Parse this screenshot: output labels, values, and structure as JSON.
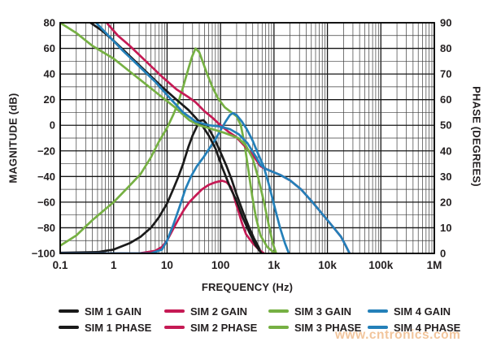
{
  "watermark": "www.cntronics.com",
  "chart_data": {
    "type": "line",
    "title": "",
    "xlabel": "FREQUENCY (Hz)",
    "ylabel_left": "MAGNITUDE (dB)",
    "ylabel_right": "PHASE (DEGREES)",
    "x_scale": "log",
    "x_range_hz": [
      0.1,
      1000000
    ],
    "x_tick_labels": [
      "0.1",
      "1",
      "10",
      "100",
      "1k",
      "10k",
      "100k",
      "1M"
    ],
    "y_left_range_db": [
      -100,
      80
    ],
    "y_left_tick_labels": [
      "80",
      "60",
      "40",
      "20",
      "0",
      "−20",
      "−40",
      "−60",
      "−80",
      "−100"
    ],
    "y_left_tick_values": [
      80,
      60,
      40,
      20,
      0,
      -20,
      -40,
      -60,
      -80,
      -100
    ],
    "y_right_range_deg": [
      0,
      90
    ],
    "y_right_tick_labels": [
      "90",
      "80",
      "70",
      "60",
      "50",
      "40",
      "30",
      "20",
      "10",
      "0"
    ],
    "y_right_tick_values": [
      90,
      80,
      70,
      60,
      50,
      40,
      30,
      20,
      10,
      0
    ],
    "grid": "full log minor verticals; horizontal line every 10 dB (5 deg), major every 20 dB",
    "legend_position": "below",
    "colors": {
      "sim1": "#1a1a1a",
      "sim2": "#c51a54",
      "sim3": "#76b043",
      "sim4": "#2480b9"
    },
    "series": [
      {
        "name": "SIM 1 GAIN",
        "color": "sim1",
        "axis": "left",
        "unit": "dB",
        "points": [
          [
            0.1,
            -99.5
          ],
          [
            0.5,
            -99
          ],
          [
            1,
            -97
          ],
          [
            2,
            -92
          ],
          [
            3.2,
            -87
          ],
          [
            5,
            -80
          ],
          [
            7,
            -72
          ],
          [
            10,
            -61
          ],
          [
            13,
            -50
          ],
          [
            16,
            -41
          ],
          [
            20,
            -30
          ],
          [
            25,
            -17
          ],
          [
            30,
            -8
          ],
          [
            36,
            -1
          ],
          [
            42,
            3.5
          ],
          [
            48,
            4
          ],
          [
            55,
            1
          ],
          [
            65,
            -5
          ],
          [
            80,
            -12
          ],
          [
            100,
            -21
          ],
          [
            130,
            -32
          ],
          [
            160,
            -42
          ],
          [
            200,
            -54
          ],
          [
            260,
            -67
          ],
          [
            330,
            -78
          ],
          [
            420,
            -88
          ],
          [
            500,
            -94
          ],
          [
            585,
            -100
          ]
        ]
      },
      {
        "name": "SIM 2 GAIN",
        "color": "sim2",
        "axis": "left",
        "unit": "dB",
        "points": [
          [
            0.1,
            -100
          ],
          [
            3,
            -100
          ],
          [
            6,
            -98
          ],
          [
            8,
            -95
          ],
          [
            10,
            -90
          ],
          [
            13,
            -81
          ],
          [
            16,
            -74
          ],
          [
            20,
            -67
          ],
          [
            26,
            -60
          ],
          [
            34,
            -55
          ],
          [
            45,
            -50
          ],
          [
            60,
            -46.5
          ],
          [
            80,
            -44.5
          ],
          [
            107,
            -43.3
          ],
          [
            130,
            -44.5
          ],
          [
            155,
            -48
          ],
          [
            175,
            -54
          ],
          [
            194,
            -61
          ],
          [
            220,
            -68
          ],
          [
            250,
            -76
          ],
          [
            300,
            -85
          ],
          [
            400,
            -92
          ],
          [
            520,
            -97
          ],
          [
            650,
            -100
          ]
        ]
      },
      {
        "name": "SIM 3 GAIN",
        "color": "sim3",
        "axis": "left",
        "unit": "dB",
        "points": [
          [
            0.1,
            -94
          ],
          [
            0.2,
            -86
          ],
          [
            0.4,
            -74
          ],
          [
            1,
            -60
          ],
          [
            2,
            -47
          ],
          [
            3.2,
            -38
          ],
          [
            5,
            -25
          ],
          [
            7,
            -13
          ],
          [
            10,
            -2
          ],
          [
            13,
            8
          ],
          [
            16,
            17
          ],
          [
            20,
            30
          ],
          [
            25,
            44
          ],
          [
            29,
            53
          ],
          [
            34,
            60
          ],
          [
            40,
            57
          ],
          [
            46,
            50
          ],
          [
            55,
            41
          ],
          [
            70,
            30
          ],
          [
            90,
            21
          ],
          [
            120,
            14
          ],
          [
            160,
            10
          ],
          [
            200,
            7
          ],
          [
            240,
            0
          ],
          [
            280,
            -14
          ],
          [
            330,
            -34
          ],
          [
            390,
            -55
          ],
          [
            460,
            -72
          ],
          [
            560,
            -86
          ],
          [
            750,
            -95
          ],
          [
            1050,
            -100
          ]
        ]
      },
      {
        "name": "SIM 4 GAIN",
        "color": "sim4",
        "axis": "left",
        "unit": "dB",
        "points": [
          [
            0.1,
            -100
          ],
          [
            5,
            -100
          ],
          [
            8,
            -97
          ],
          [
            10,
            -90
          ],
          [
            13,
            -78
          ],
          [
            17,
            -64
          ],
          [
            22,
            -50
          ],
          [
            28,
            -40
          ],
          [
            36,
            -32
          ],
          [
            48,
            -25
          ],
          [
            62,
            -18
          ],
          [
            80,
            -11
          ],
          [
            100,
            -4
          ],
          [
            125,
            3
          ],
          [
            150,
            8
          ],
          [
            170,
            9.5
          ],
          [
            200,
            8
          ],
          [
            250,
            3
          ],
          [
            310,
            -3
          ],
          [
            400,
            -12
          ],
          [
            500,
            -22
          ],
          [
            640,
            -32
          ],
          [
            800,
            -46
          ],
          [
            1000,
            -62
          ],
          [
            1300,
            -80
          ],
          [
            1600,
            -92
          ],
          [
            1900,
            -100
          ]
        ]
      },
      {
        "name": "SIM 1 PHASE",
        "color": "sim1",
        "axis": "right",
        "unit": "deg",
        "points": [
          [
            0.25,
            95
          ],
          [
            0.37,
            90
          ],
          [
            0.6,
            87
          ],
          [
            1,
            83
          ],
          [
            2,
            77
          ],
          [
            4,
            71
          ],
          [
            8,
            65
          ],
          [
            15,
            60
          ],
          [
            25,
            56
          ],
          [
            34,
            53
          ],
          [
            45,
            50
          ],
          [
            60,
            46
          ],
          [
            80,
            41
          ],
          [
            110,
            33
          ],
          [
            150,
            26
          ],
          [
            194,
            21
          ],
          [
            260,
            14
          ],
          [
            350,
            8
          ],
          [
            460,
            3
          ],
          [
            585,
            0
          ]
        ]
      },
      {
        "name": "SIM 2 PHASE",
        "color": "sim2",
        "axis": "right",
        "unit": "deg",
        "points": [
          [
            0.5,
            95
          ],
          [
            0.74,
            90
          ],
          [
            1.2,
            85
          ],
          [
            2,
            81
          ],
          [
            4,
            75
          ],
          [
            8,
            69
          ],
          [
            15,
            64
          ],
          [
            25,
            61
          ],
          [
            34,
            59
          ],
          [
            50,
            55.5
          ],
          [
            70,
            53
          ],
          [
            100,
            50
          ],
          [
            140,
            47.5
          ],
          [
            194,
            45.5
          ],
          [
            280,
            42
          ],
          [
            400,
            38.5
          ],
          [
            560,
            34
          ],
          [
            700,
            33
          ],
          [
            900,
            32
          ],
          [
            1350,
            30.5
          ],
          [
            2000,
            28.5
          ],
          [
            3200,
            25
          ],
          [
            5000,
            20.5
          ],
          [
            7600,
            16
          ],
          [
            12000,
            11
          ],
          [
            18000,
            6.5
          ],
          [
            22000,
            3
          ],
          [
            26000,
            0
          ]
        ]
      },
      {
        "name": "SIM 3 PHASE",
        "color": "sim3",
        "axis": "right",
        "unit": "deg",
        "points": [
          [
            0.1,
            90
          ],
          [
            0.2,
            86
          ],
          [
            0.4,
            81
          ],
          [
            1,
            76
          ],
          [
            2,
            71
          ],
          [
            4,
            66
          ],
          [
            8,
            61
          ],
          [
            14,
            57
          ],
          [
            26,
            52
          ],
          [
            40,
            50
          ],
          [
            70,
            48.5
          ],
          [
            120,
            47
          ],
          [
            215,
            45
          ],
          [
            300,
            42
          ],
          [
            400,
            37
          ],
          [
            500,
            30
          ],
          [
            650,
            20
          ],
          [
            800,
            11
          ],
          [
            950,
            4
          ],
          [
            1100,
            0
          ]
        ]
      },
      {
        "name": "SIM 4 PHASE",
        "color": "sim4",
        "axis": "right",
        "unit": "deg",
        "points": [
          [
            0.3,
            95
          ],
          [
            0.47,
            90
          ],
          [
            0.8,
            85
          ],
          [
            1.5,
            79
          ],
          [
            3,
            73
          ],
          [
            6,
            67
          ],
          [
            12,
            60
          ],
          [
            20,
            55
          ],
          [
            34,
            51.5
          ],
          [
            60,
            50
          ],
          [
            100,
            49.5
          ],
          [
            150,
            48.5
          ],
          [
            220,
            46.5
          ],
          [
            320,
            43
          ],
          [
            450,
            38
          ],
          [
            560,
            34.5
          ],
          [
            700,
            33
          ],
          [
            900,
            32
          ],
          [
            1350,
            30.5
          ],
          [
            2000,
            28.5
          ],
          [
            3200,
            25
          ],
          [
            5000,
            20.5
          ],
          [
            7600,
            16
          ],
          [
            12000,
            11
          ],
          [
            18000,
            6.5
          ],
          [
            22000,
            3
          ],
          [
            26000,
            0
          ]
        ]
      }
    ],
    "legend": {
      "rows": [
        [
          "SIM 1 GAIN",
          "SIM 2 GAIN",
          "SIM 3 GAIN",
          "SIM 4 GAIN"
        ],
        [
          "SIM 1 PHASE",
          "SIM 2 PHASE",
          "SIM 3 PHASE",
          "SIM 4 PHASE"
        ]
      ]
    }
  }
}
